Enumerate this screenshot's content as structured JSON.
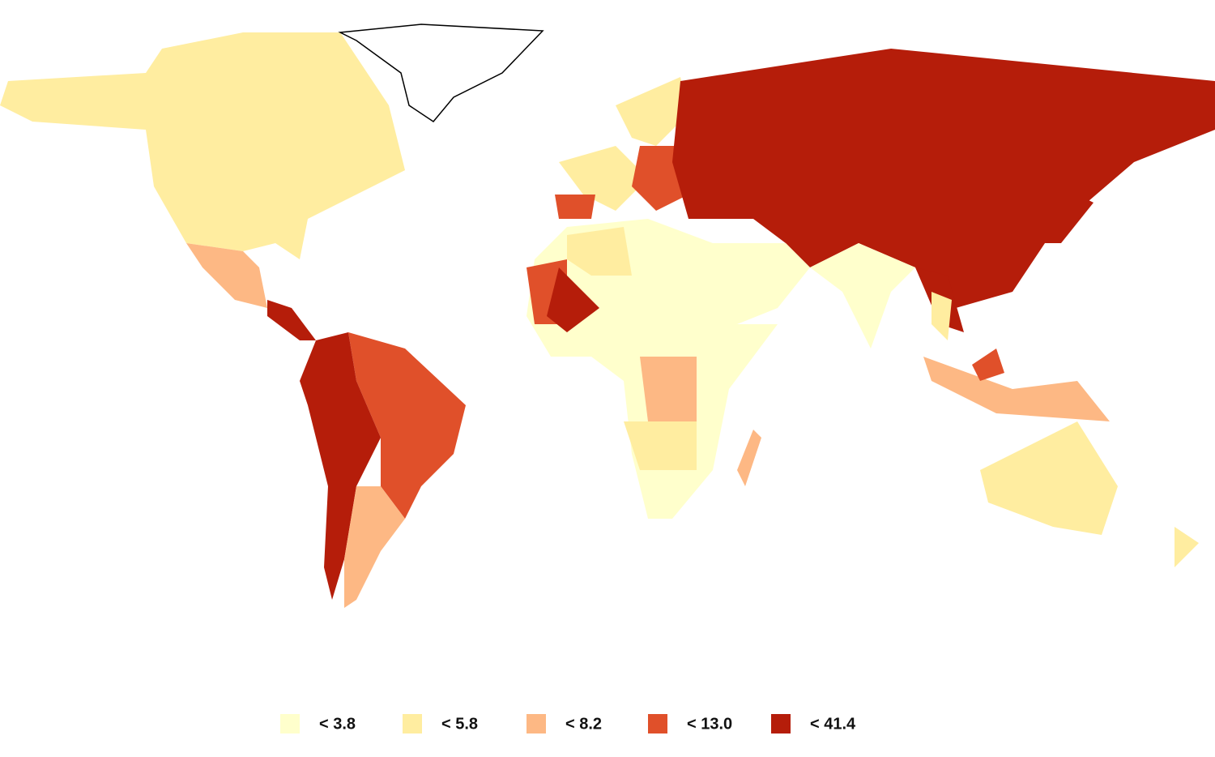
{
  "legend": {
    "items": [
      {
        "label": "< 3.8",
        "color": "#ffffcc"
      },
      {
        "label": "< 5.8",
        "color": "#ffeda0"
      },
      {
        "label": "< 8.2",
        "color": "#fdb884"
      },
      {
        "label": "< 13.0",
        "color": "#e0502a"
      },
      {
        "label": "< 41.4",
        "color": "#b51d0a"
      }
    ]
  }
}
